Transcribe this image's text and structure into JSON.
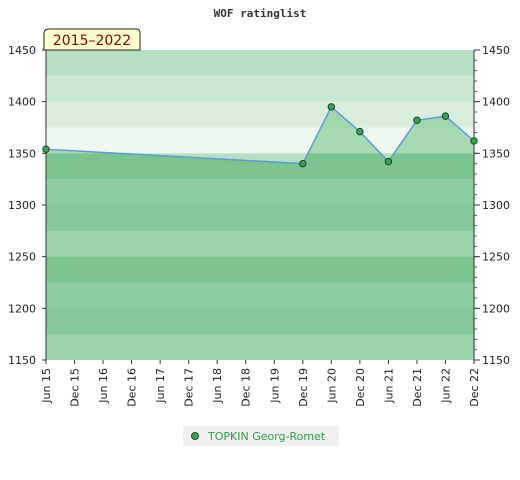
{
  "chart_data": {
    "type": "area",
    "title": "WOF ratinglist",
    "period_label": "2015–2022",
    "xlabel": "",
    "ylabel": "",
    "ylim": [
      1150,
      1450
    ],
    "y_ticks": [
      1150,
      1200,
      1250,
      1300,
      1350,
      1400,
      1450
    ],
    "x_tick_labels": [
      "Jun 15",
      "Dec 15",
      "Jun 16",
      "Dec 16",
      "Jun 17",
      "Dec 17",
      "Jun 18",
      "Dec 18",
      "Jun 19",
      "Dec 19",
      "Jun 20",
      "Dec 20",
      "Jun 21",
      "Dec 21",
      "Jun 22",
      "Dec 22"
    ],
    "grid": true,
    "legend_position": "bottom",
    "series": [
      {
        "name": "TOPKIN Georg-Romet",
        "color": "#5b9bd5",
        "fill": "#8fce9f",
        "points": [
          {
            "x": "Jun 15",
            "y": 1354
          },
          {
            "x": "Dec 19",
            "y": 1340
          },
          {
            "x": "Jun 20",
            "y": 1395
          },
          {
            "x": "Dec 20",
            "y": 1371
          },
          {
            "x": "Jun 21",
            "y": 1342
          },
          {
            "x": "Dec 21",
            "y": 1382
          },
          {
            "x": "Jun 22",
            "y": 1386
          },
          {
            "x": "Dec 22",
            "y": 1362
          }
        ]
      }
    ]
  }
}
